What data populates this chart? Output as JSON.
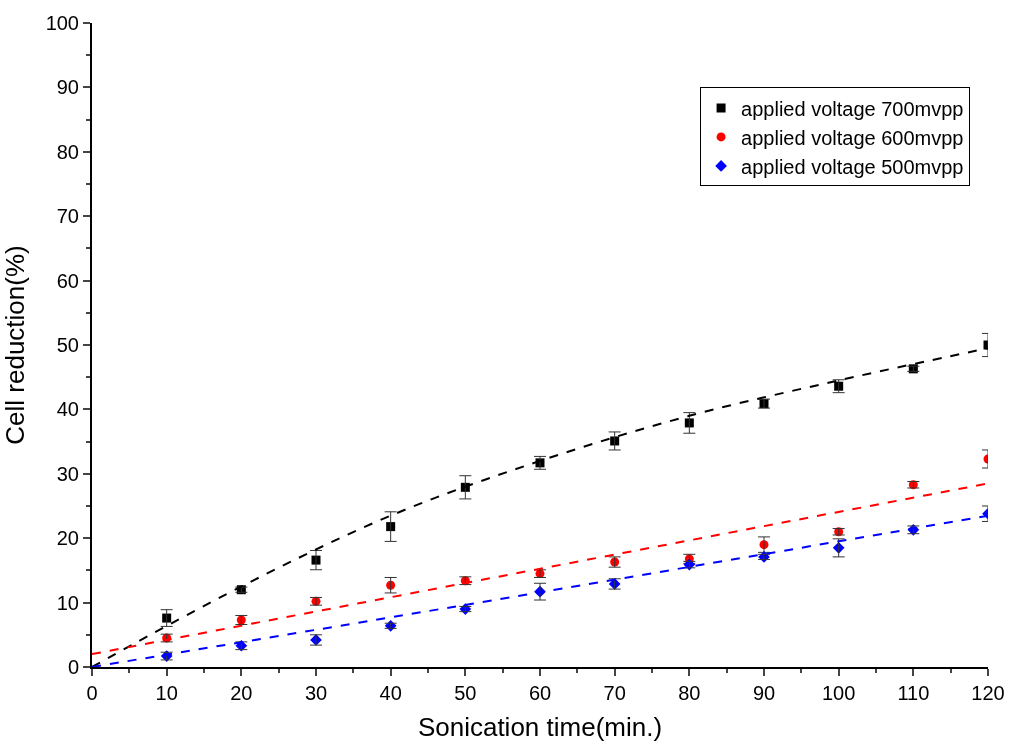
{
  "chart_data": {
    "type": "scatter",
    "xlabel": "Sonication time(min.)",
    "ylabel": "Cell reduction(%)",
    "xlim": [
      0,
      120
    ],
    "ylim": [
      0,
      100
    ],
    "xticks": [
      0,
      10,
      20,
      30,
      40,
      50,
      60,
      70,
      80,
      90,
      100,
      110,
      120
    ],
    "yticks": [
      0,
      10,
      20,
      30,
      40,
      50,
      60,
      70,
      80,
      90,
      100
    ],
    "legend": "top right",
    "x": [
      10,
      20,
      30,
      40,
      50,
      60,
      70,
      80,
      90,
      100,
      110,
      120
    ],
    "series": [
      {
        "name": "applied voltage 700mvpp",
        "color": "#000000",
        "marker": "square",
        "values": [
          7.6,
          12.0,
          16.6,
          21.8,
          27.9,
          31.7,
          35.1,
          37.9,
          40.9,
          43.6,
          46.3,
          50.0
        ],
        "errors": [
          1.3,
          0.4,
          1.5,
          2.3,
          1.8,
          1.0,
          1.4,
          1.6,
          0.7,
          1.0,
          0.4,
          1.8
        ]
      },
      {
        "name": "applied voltage 600mvpp",
        "color": "#ff0000",
        "marker": "circle",
        "values": [
          4.5,
          7.3,
          10.2,
          12.7,
          13.4,
          14.5,
          16.3,
          16.8,
          19.0,
          21.0,
          28.3,
          32.3
        ],
        "errors": [
          0.6,
          0.7,
          0.6,
          1.2,
          0.6,
          0.6,
          0.8,
          0.7,
          1.2,
          0.5,
          0.5,
          1.4
        ]
      },
      {
        "name": "applied voltage 500mvpp",
        "color": "#0000ff",
        "marker": "diamond",
        "values": [
          1.7,
          3.3,
          4.2,
          6.4,
          9.0,
          11.7,
          12.9,
          15.9,
          17.1,
          18.5,
          21.3,
          23.8
        ],
        "errors": [
          0.6,
          0.6,
          0.8,
          0.4,
          0.4,
          1.3,
          0.8,
          0.5,
          0.4,
          1.4,
          0.6,
          1.2
        ]
      },
      {
        "type": "line",
        "color": "#000000",
        "line_style": "dashed",
        "x": [
          0,
          20,
          40,
          60,
          80,
          100,
          120
        ],
        "values": [
          0,
          12.5,
          23.5,
          32,
          39,
          44.5,
          49.5
        ]
      },
      {
        "type": "line",
        "color": "#ff0000",
        "line_style": "dashed",
        "x": [
          0,
          120
        ],
        "values": [
          2,
          28.5
        ]
      },
      {
        "type": "line",
        "color": "#0000ff",
        "line_style": "dashed",
        "x": [
          0,
          60,
          120
        ],
        "values": [
          0,
          11.6,
          23.5
        ]
      }
    ]
  }
}
